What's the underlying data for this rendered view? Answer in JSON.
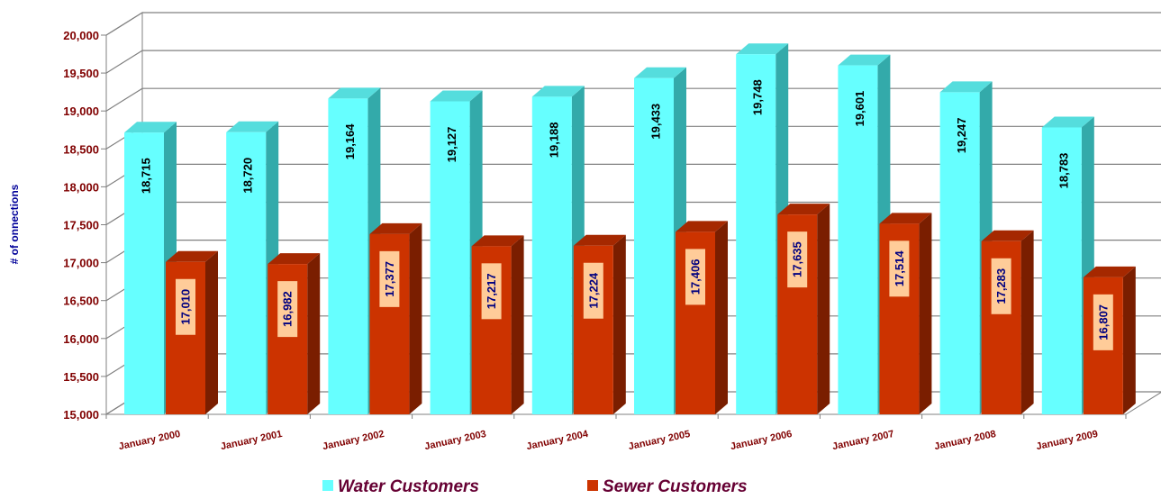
{
  "chart_data": {
    "type": "bar",
    "ylabel": "# of onnections",
    "ylim": [
      15000,
      20000
    ],
    "ytick_step": 500,
    "ytick_labels": [
      "15,000",
      "15,500",
      "16,000",
      "16,500",
      "17,000",
      "17,500",
      "18,000",
      "18,500",
      "19,000",
      "19,500",
      "20,000"
    ],
    "categories": [
      "January 2000",
      "January 2001",
      "January 2002",
      "January 2003",
      "January 2004",
      "January 2005",
      "January 2006",
      "January 2007",
      "January 2008",
      "January 2009"
    ],
    "series": [
      {
        "name": "Water Customers",
        "color": "#66FFFF",
        "values": [
          18715,
          18720,
          19164,
          19127,
          19188,
          19433,
          19748,
          19601,
          19247,
          18783
        ],
        "labels": [
          "18,715",
          "18,720",
          "19,164",
          "19,127",
          "19,188",
          "19,433",
          "19,748",
          "19,601",
          "19,247",
          "18,783"
        ]
      },
      {
        "name": "Sewer Customers",
        "color": "#CC3300",
        "values": [
          17010,
          16982,
          17377,
          17217,
          17224,
          17406,
          17635,
          17514,
          17283,
          16807
        ],
        "labels": [
          "17,010",
          "16,982",
          "17,377",
          "17,217",
          "17,224",
          "17,406",
          "17,635",
          "17,514",
          "17,283",
          "16,807"
        ]
      }
    ],
    "grid": true,
    "legend": "bottom-center"
  }
}
